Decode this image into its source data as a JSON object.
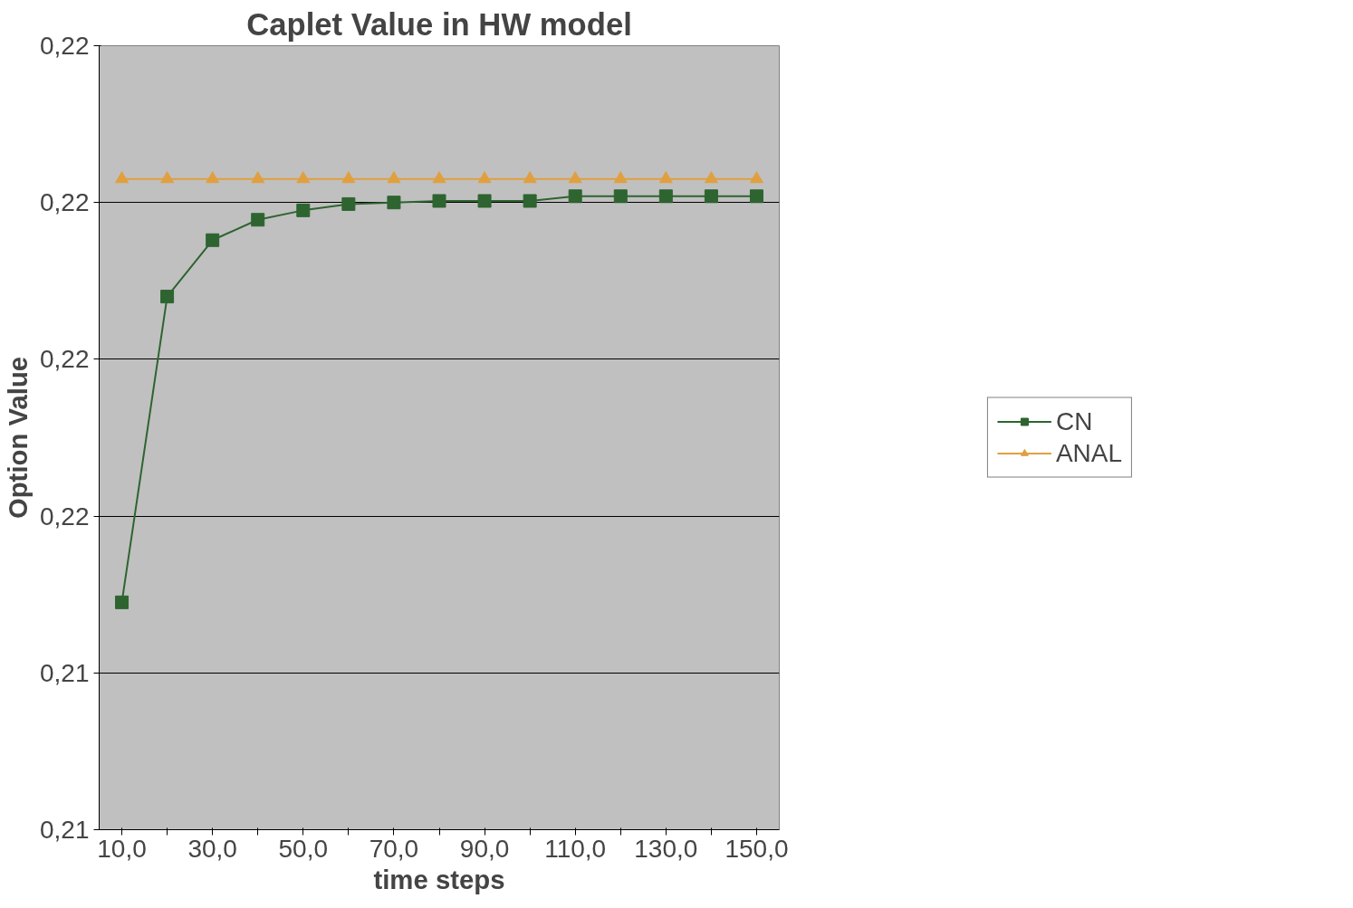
{
  "chart_data": {
    "type": "line",
    "title": "Caplet Value in HW model",
    "xlabel": "time steps",
    "ylabel": "Option Value",
    "categories": [
      "10,0",
      null,
      "30,0",
      null,
      "50,0",
      null,
      "70,0",
      null,
      "90,0",
      null,
      "110,0",
      null,
      "130,0",
      null,
      "150,0"
    ],
    "series": [
      {
        "name": "CN",
        "color": "#2e6430",
        "marker": "square",
        "values": [
          0.21545,
          0.2174,
          0.21776,
          0.21789,
          0.21795,
          0.21799,
          0.218,
          0.21801,
          0.21801,
          0.21801,
          0.21804,
          0.21804,
          0.21804,
          0.21804,
          0.21804
        ]
      },
      {
        "name": "ANAL",
        "color": "#e0a040",
        "marker": "triangle",
        "values": [
          0.21815,
          0.21815,
          0.21815,
          0.21815,
          0.21815,
          0.21815,
          0.21815,
          0.21815,
          0.21815,
          0.21815,
          0.21815,
          0.21815,
          0.21815,
          0.21815,
          0.21815
        ]
      }
    ],
    "ylim": [
      0.214,
      0.219
    ],
    "yticks": [
      {
        "value": 0.214,
        "label": "0,21"
      },
      {
        "value": 0.215,
        "label": "0,21"
      },
      {
        "value": 0.216,
        "label": "0,22"
      },
      {
        "value": 0.217,
        "label": "0,22"
      },
      {
        "value": 0.218,
        "label": "0,22"
      },
      {
        "value": 0.219,
        "label": "0,22"
      }
    ],
    "grid": "y",
    "legend": "right",
    "line_style": "solid"
  }
}
